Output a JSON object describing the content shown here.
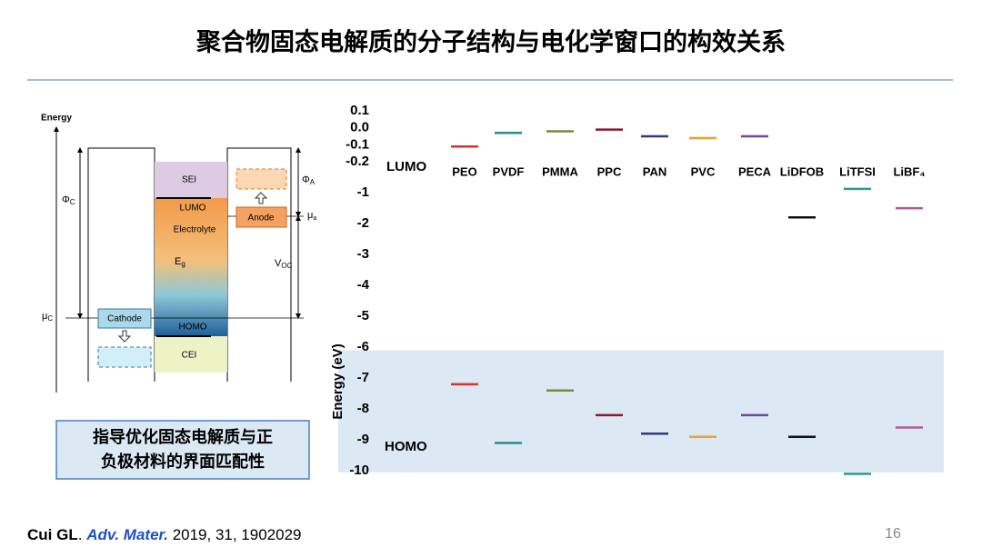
{
  "header": {
    "title": "聚合物固态电解质的分子结构与电化学窗口的构效关系"
  },
  "diagram": {
    "energy": "Energy",
    "phi_c": {
      "symbol": "Φ",
      "sub": "C"
    },
    "mu_c": {
      "symbol": "μ",
      "sub": "C"
    },
    "cathode": "Cathode",
    "sei": "SEI",
    "lumo": "LUMO",
    "electrolyte": "Electrolyte",
    "eg": {
      "symbol": "E",
      "sub": "g"
    },
    "homo": "HOMO",
    "cei": "CEI",
    "phi_a": {
      "symbol": "Φ",
      "sub": "A"
    },
    "anode": "Anode",
    "mu_a": {
      "symbol": "μ",
      "sub": "a"
    },
    "voc": {
      "symbol": "V",
      "sub": "OC"
    }
  },
  "callout": [
    "指导优化固态电解质与正",
    "负极材料的界面匹配性"
  ],
  "chart_data": {
    "type": "level",
    "ylabel": "Energy (eV)",
    "categories": [
      "PEO",
      "PVDF",
      "PMMA",
      "PPC",
      "PAN",
      "PVC",
      "PECA",
      "LiDFOB",
      "LiTFSI",
      "LiBF₄"
    ],
    "colors": [
      "#d9312b",
      "#2a8c8c",
      "#7b8c3a",
      "#8b1a2a",
      "#2a3c7a",
      "#f0a030",
      "#6a4a9a",
      "#111111",
      "#2a9a8a",
      "#b05a9a"
    ],
    "series": [
      {
        "name": "LUMO",
        "values": [
          -0.11,
          -0.03,
          -0.02,
          -0.01,
          -0.05,
          -0.06,
          -0.05,
          -1.8,
          -0.9,
          -1.5
        ]
      },
      {
        "name": "HOMO",
        "values": [
          -7.2,
          -9.1,
          -7.4,
          -8.2,
          -8.8,
          -8.9,
          -8.2,
          -8.9,
          -10.1,
          -8.6
        ]
      }
    ],
    "ylim": [
      -10.1,
      0.1
    ],
    "yticks": [
      0.1,
      {
        "value": 0,
        "label": "0.0"
      },
      -0.1,
      -0.2,
      -1,
      -2,
      -3,
      -4,
      -5,
      -6,
      -7,
      -8,
      -9,
      -10
    ],
    "shaded_band": [
      -10.05,
      -6.1
    ],
    "band_color": "#dce8f3"
  },
  "footer": {
    "author": "Cui GL",
    "dot": ".",
    "journal": "Adv. Mater.",
    "ref": "2019, 31, 1902029",
    "page": "16"
  }
}
